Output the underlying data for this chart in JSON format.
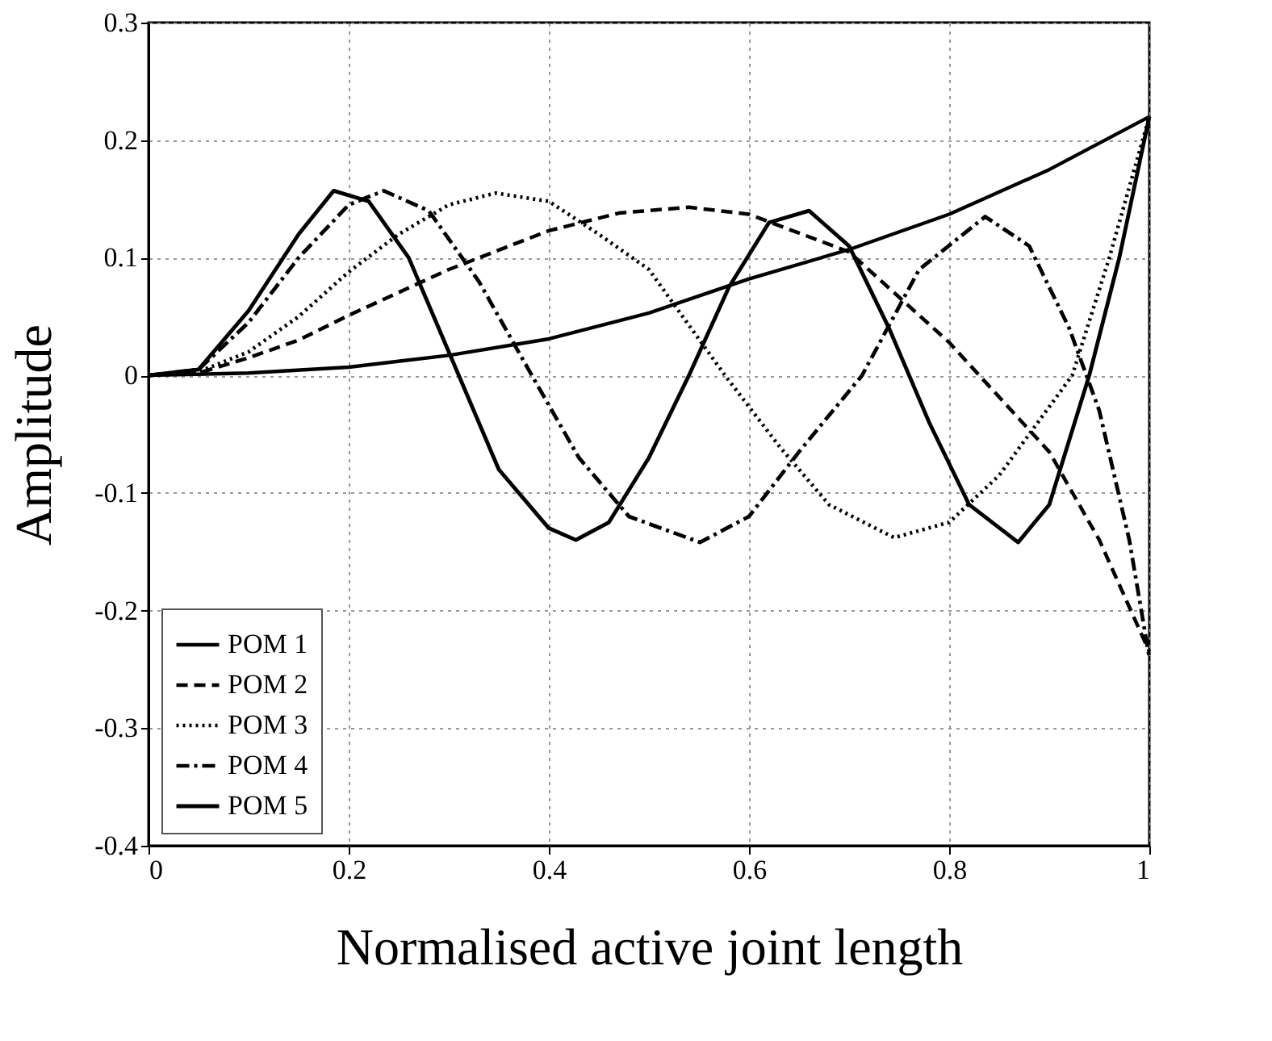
{
  "chart_data": {
    "type": "line",
    "xlabel": "Normalised active joint length",
    "ylabel": "Amplitude",
    "xlim": [
      0,
      1
    ],
    "xticks": [
      0,
      0.2,
      0.4,
      0.6,
      0.8,
      1
    ],
    "ylim": [
      -0.4,
      0.3
    ],
    "yticks": [
      -0.4,
      -0.3,
      -0.2,
      -0.1,
      0,
      0.1,
      0.2,
      0.3
    ],
    "grid": true,
    "legend": "bottom left",
    "marker": "none",
    "series": [
      {
        "name": "POM 1",
        "color": "#000000",
        "line_style": "solid",
        "x": [
          0,
          0.1,
          0.2,
          0.3,
          0.4,
          0.5,
          0.6,
          0.7,
          0.8,
          0.9,
          1
        ],
        "values": [
          0,
          0.002,
          0.007,
          0.017,
          0.031,
          0.053,
          0.082,
          0.107,
          0.137,
          0.175,
          0.22
        ]
      },
      {
        "name": "POM 2",
        "color": "#000000",
        "line_style": "dashed",
        "x": [
          0,
          0.05,
          0.1,
          0.15,
          0.2,
          0.3,
          0.4,
          0.47,
          0.54,
          0.6,
          0.7,
          0.8,
          0.9,
          0.95,
          1
        ],
        "values": [
          0,
          0.002,
          0.015,
          0.03,
          0.051,
          0.09,
          0.123,
          0.138,
          0.143,
          0.137,
          0.105,
          0.028,
          -0.065,
          -0.14,
          -0.235
        ]
      },
      {
        "name": "POM 3",
        "color": "#000000",
        "line_style": "dotted",
        "x": [
          0,
          0.05,
          0.1,
          0.15,
          0.2,
          0.25,
          0.3,
          0.347,
          0.4,
          0.45,
          0.5,
          0.576,
          0.63,
          0.68,
          0.745,
          0.8,
          0.85,
          0.923,
          0.96,
          1
        ],
        "values": [
          0,
          0.003,
          0.02,
          0.05,
          0.088,
          0.12,
          0.145,
          0.155,
          0.148,
          0.12,
          0.09,
          0,
          -0.06,
          -0.11,
          -0.138,
          -0.125,
          -0.085,
          0,
          0.1,
          0.22
        ]
      },
      {
        "name": "POM 4",
        "color": "#000000",
        "line_style": "dashdot",
        "x": [
          0,
          0.05,
          0.1,
          0.15,
          0.2,
          0.235,
          0.28,
          0.33,
          0.383,
          0.43,
          0.48,
          0.551,
          0.6,
          0.65,
          0.713,
          0.77,
          0.836,
          0.88,
          0.92,
          0.95,
          0.98,
          1
        ],
        "values": [
          0,
          0.005,
          0.045,
          0.1,
          0.145,
          0.157,
          0.14,
          0.08,
          0,
          -0.07,
          -0.12,
          -0.142,
          -0.12,
          -0.065,
          0,
          0.09,
          0.135,
          0.11,
          0.04,
          -0.03,
          -0.14,
          -0.24
        ]
      },
      {
        "name": "POM 5",
        "color": "#000000",
        "line_style": "solid",
        "x": [
          0,
          0.05,
          0.1,
          0.15,
          0.185,
          0.22,
          0.26,
          0.3,
          0.35,
          0.4,
          0.427,
          0.46,
          0.5,
          0.54,
          0.58,
          0.62,
          0.66,
          0.7,
          0.74,
          0.78,
          0.82,
          0.869,
          0.9,
          0.94,
          0.97,
          1
        ],
        "values": [
          0,
          0.005,
          0.055,
          0.12,
          0.157,
          0.148,
          0.1,
          0.02,
          -0.08,
          -0.13,
          -0.14,
          -0.125,
          -0.07,
          0,
          0.075,
          0.13,
          0.14,
          0.11,
          0.04,
          -0.04,
          -0.11,
          -0.142,
          -0.11,
          0,
          0.1,
          0.22
        ]
      }
    ]
  }
}
